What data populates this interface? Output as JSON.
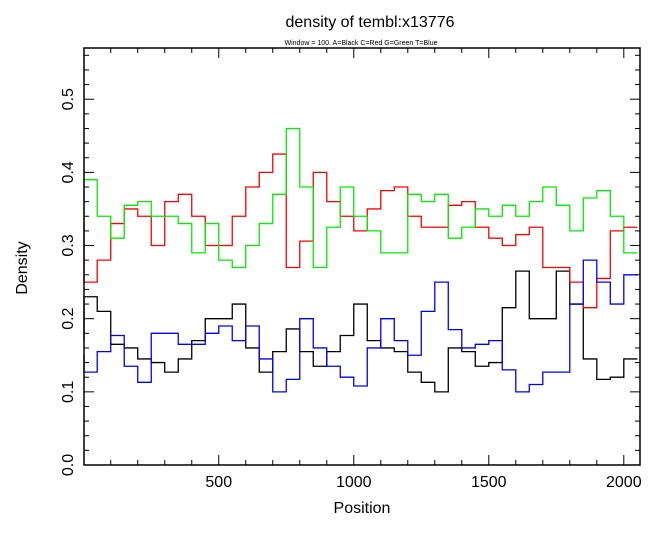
{
  "chart_data": {
    "type": "line",
    "title": "density of tembl:x13776",
    "subtitle": "Window = 100. A=Black C=Red G=Green T=Blue",
    "xlabel": "Position",
    "ylabel": "Density",
    "xlim": [
      1,
      2060
    ],
    "ylim": [
      0,
      0.57
    ],
    "x_ticks": [
      500,
      1000,
      1500,
      2000
    ],
    "y_ticks": [
      "0.0",
      "0.1",
      "0.2",
      "0.3",
      "0.4",
      "0.5"
    ],
    "grid": false,
    "x": [
      0,
      50,
      100,
      150,
      200,
      250,
      300,
      350,
      400,
      450,
      500,
      550,
      600,
      650,
      700,
      750,
      800,
      850,
      900,
      950,
      1000,
      1050,
      1100,
      1150,
      1200,
      1250,
      1300,
      1350,
      1400,
      1450,
      1500,
      1550,
      1600,
      1650,
      1700,
      1750,
      1800,
      1850,
      1900,
      1950,
      2000,
      2050
    ],
    "series": [
      {
        "key": "A",
        "color": "#000000",
        "values": [
          0.17,
          0.23,
          0.21,
          0.165,
          0.16,
          0.145,
          0.14,
          0.127,
          0.145,
          0.17,
          0.2,
          0.2,
          0.22,
          0.16,
          0.127,
          0.155,
          0.186,
          0.155,
          0.135,
          0.155,
          0.177,
          0.22,
          0.17,
          0.16,
          0.155,
          0.127,
          0.113,
          0.1,
          0.16,
          0.155,
          0.135,
          0.14,
          0.215,
          0.265,
          0.2,
          0.2,
          0.265,
          0.22,
          0.145,
          0.117,
          0.12,
          0.145
        ]
      },
      {
        "key": "C",
        "color": "#ff0000",
        "values": [
          0.33,
          0.25,
          0.28,
          0.33,
          0.35,
          0.34,
          0.3,
          0.36,
          0.37,
          0.34,
          0.3,
          0.3,
          0.34,
          0.38,
          0.4,
          0.425,
          0.27,
          0.306,
          0.4,
          0.36,
          0.34,
          0.32,
          0.35,
          0.375,
          0.38,
          0.34,
          0.325,
          0.325,
          0.355,
          0.36,
          0.325,
          0.31,
          0.3,
          0.315,
          0.325,
          0.27,
          0.27,
          0.25,
          0.215,
          0.255,
          0.32,
          0.325
        ]
      },
      {
        "key": "G",
        "color": "#00ee00",
        "values": [
          0.33,
          0.39,
          0.34,
          0.31,
          0.355,
          0.36,
          0.34,
          0.34,
          0.33,
          0.29,
          0.33,
          0.28,
          0.27,
          0.3,
          0.33,
          0.37,
          0.46,
          0.38,
          0.27,
          0.325,
          0.38,
          0.34,
          0.32,
          0.29,
          0.29,
          0.37,
          0.36,
          0.37,
          0.31,
          0.325,
          0.35,
          0.34,
          0.355,
          0.34,
          0.36,
          0.38,
          0.355,
          0.32,
          0.365,
          0.375,
          0.34,
          0.29
        ]
      },
      {
        "key": "T",
        "color": "#0000ff",
        "values": [
          0.15,
          0.127,
          0.155,
          0.177,
          0.135,
          0.113,
          0.18,
          0.18,
          0.165,
          0.165,
          0.18,
          0.19,
          0.17,
          0.19,
          0.145,
          0.1,
          0.117,
          0.2,
          0.16,
          0.135,
          0.12,
          0.108,
          0.16,
          0.2,
          0.17,
          0.15,
          0.21,
          0.25,
          0.185,
          0.16,
          0.165,
          0.17,
          0.13,
          0.1,
          0.11,
          0.127,
          0.127,
          0.22,
          0.28,
          0.25,
          0.22,
          0.26
        ]
      }
    ]
  }
}
